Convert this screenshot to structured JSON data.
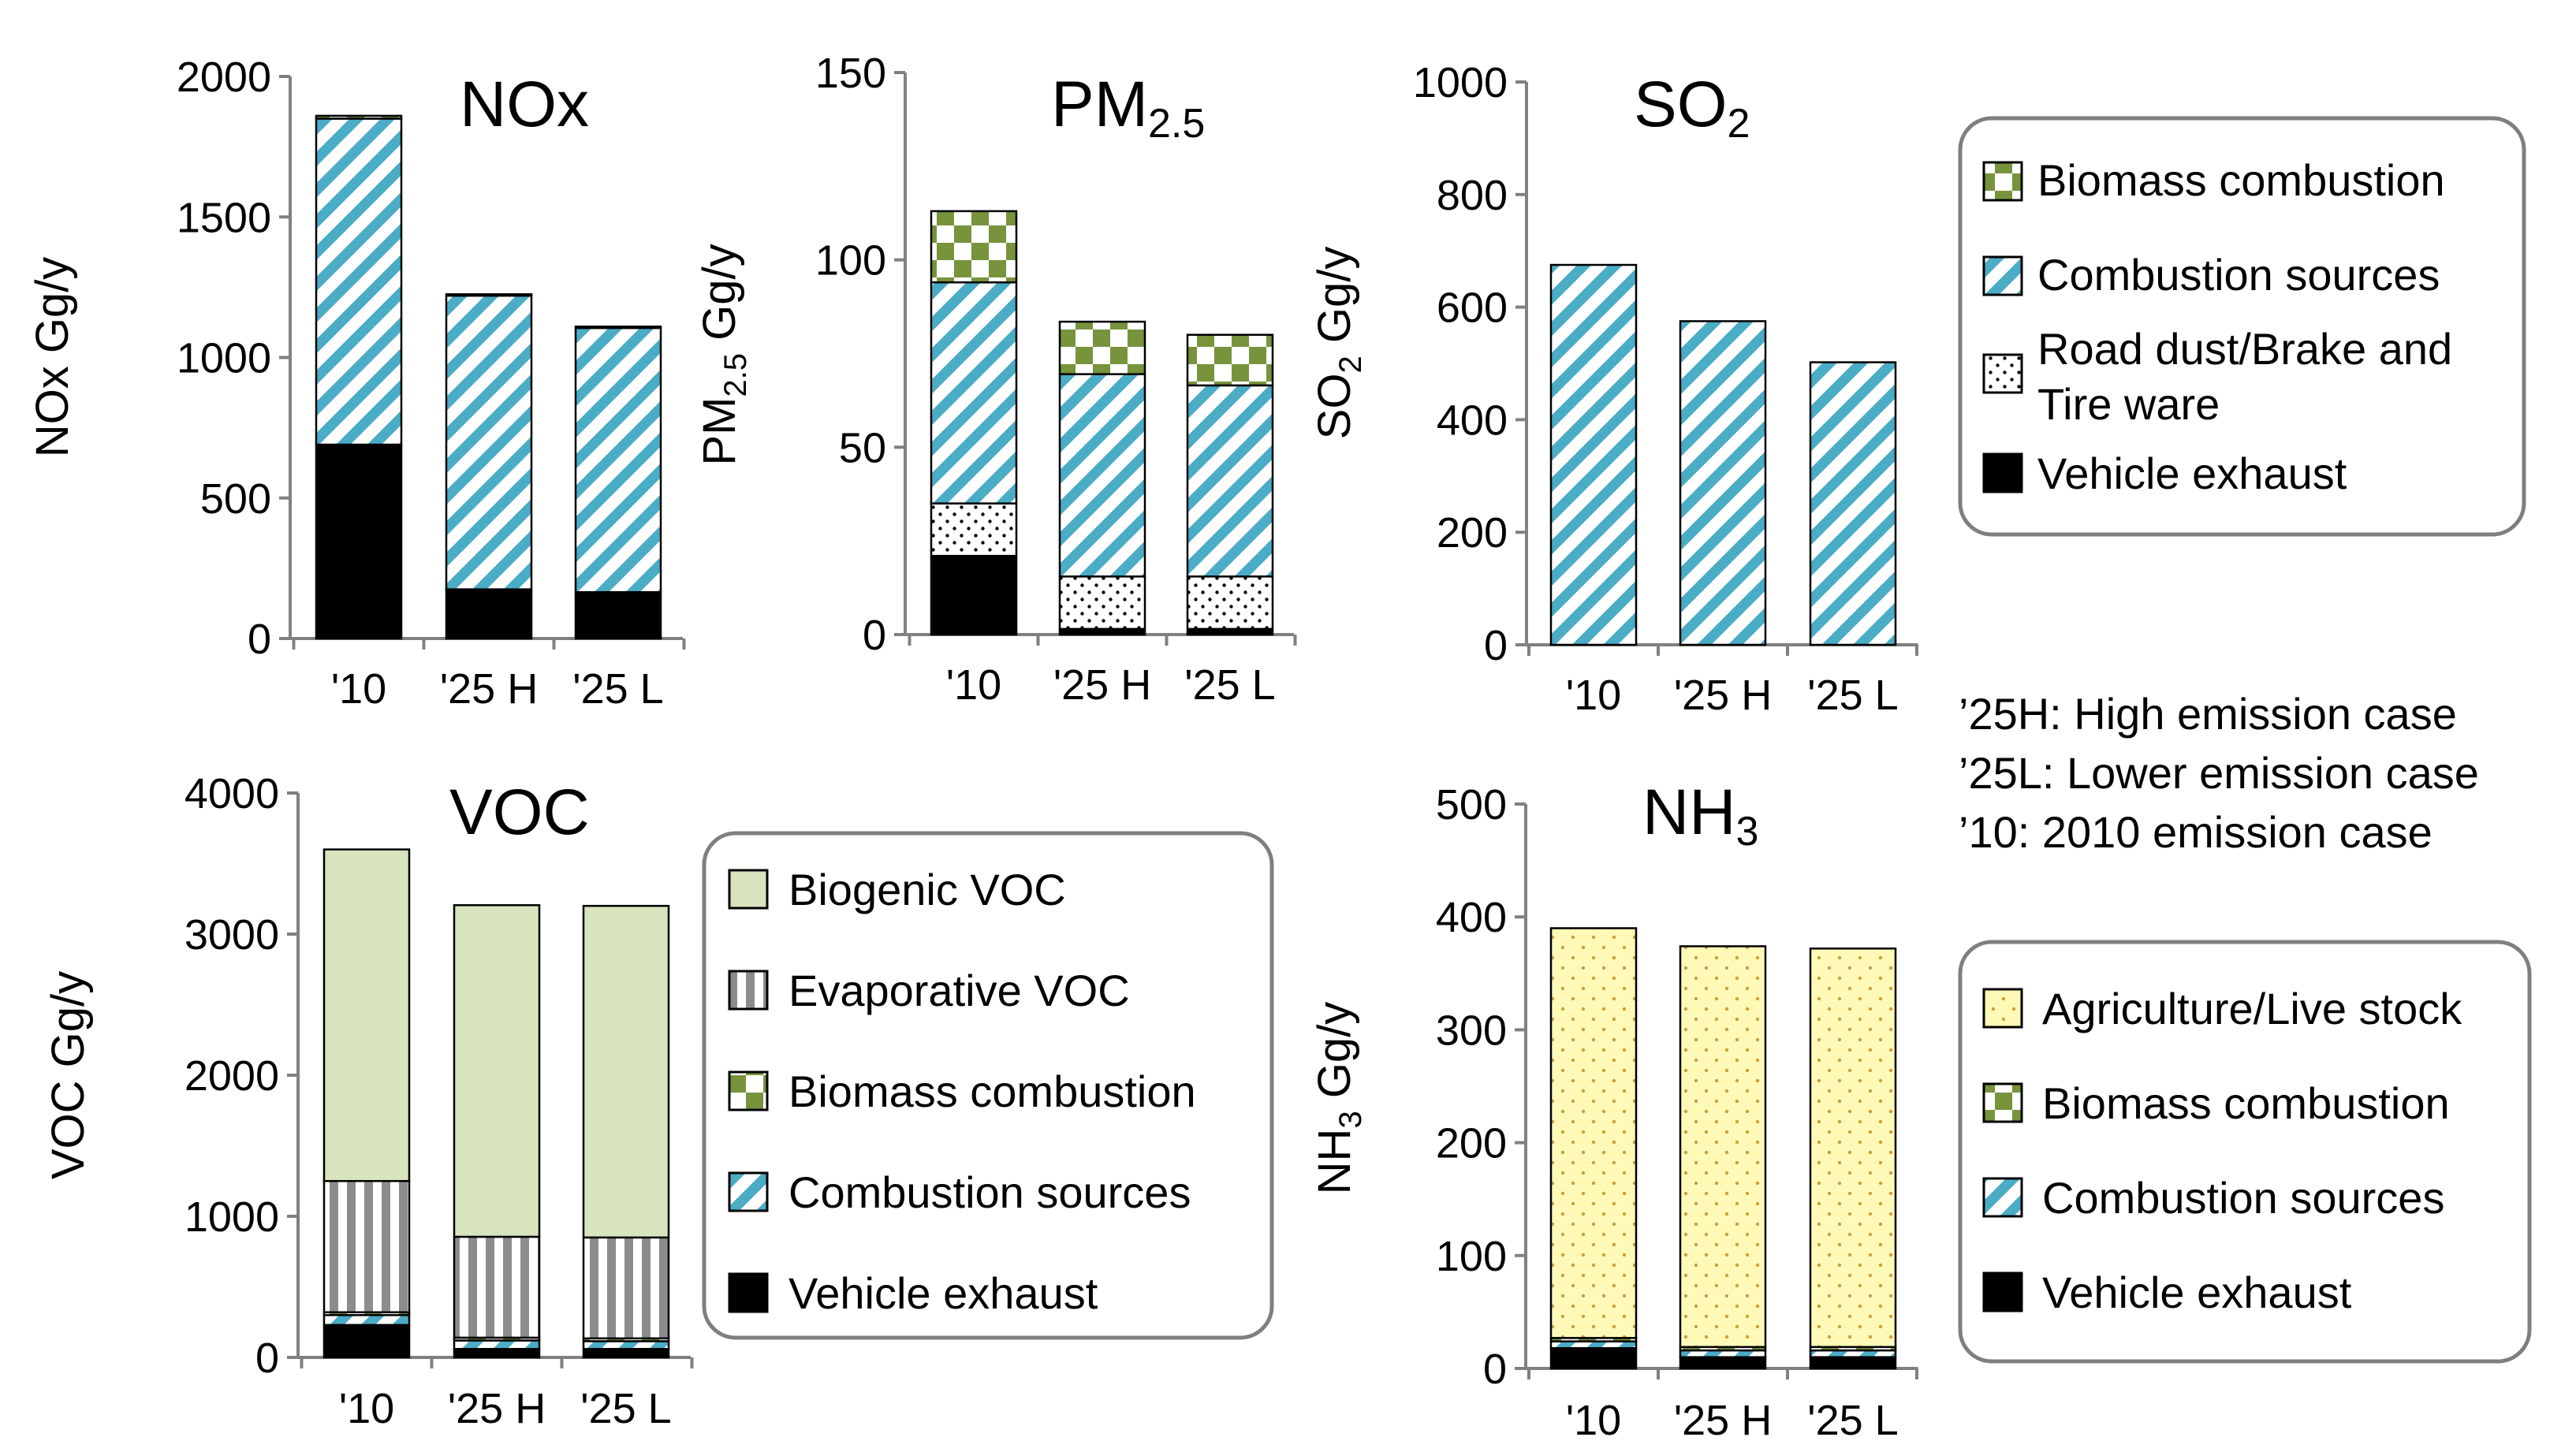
{
  "colors": {
    "vehicle_exhaust": "#000000",
    "combustion_sources": "#4bacc6",
    "biomass_green": "#77933c",
    "biogenic_voc": "#d7e4bd",
    "evaporative_gray": "#8c8c8c",
    "agriculture_yellow": "#fff9b8",
    "agriculture_dot": "#c9a03c",
    "frame": "#7f7f7f"
  },
  "legends": {
    "top": [
      "Biomass combustion",
      "Combustion sources",
      "Road dust/Brake and",
      "Tire ware",
      "Vehicle exhaust"
    ],
    "voc": [
      "Biogenic VOC",
      "Evaporative VOC",
      "Biomass combustion",
      "Combustion sources",
      "Vehicle exhaust"
    ],
    "nh3": [
      "Agriculture/Live stock",
      "Biomass combustion",
      "Combustion sources",
      "Vehicle exhaust"
    ]
  },
  "notes": [
    "’25H: High emission case",
    "’25L: Lower emission case",
    "’10: 2010 emission case"
  ],
  "chart_data": [
    {
      "id": "nox",
      "type": "bar",
      "stacked": true,
      "title": "NOx",
      "title_sub": "",
      "ylabel": "NOx Gg/y",
      "ylabel_sub": "",
      "ylabel_suffix": "",
      "categories": [
        "'10",
        "'25 H",
        "'25 L"
      ],
      "ylim": [
        0,
        2000
      ],
      "yticks": [
        "0",
        "500",
        "1000",
        "1500",
        "2000"
      ],
      "series": [
        {
          "key": "vehicle",
          "values": [
            690,
            175,
            165
          ]
        },
        {
          "key": "combustion",
          "values": [
            1160,
            1045,
            940
          ]
        },
        {
          "key": "biomass",
          "values": [
            10,
            5,
            5
          ]
        }
      ]
    },
    {
      "id": "pm25",
      "type": "bar",
      "stacked": true,
      "title": "PM",
      "title_sub": "2.5",
      "ylabel": "PM",
      "ylabel_sub": "2.5",
      "ylabel_suffix": " Gg/y",
      "categories": [
        "'10",
        "'25 H",
        "'25 L"
      ],
      "ylim": [
        0,
        150
      ],
      "yticks": [
        "0",
        "50",
        "100",
        "150"
      ],
      "series": [
        {
          "key": "vehicle",
          "values": [
            21,
            1.5,
            1.5
          ]
        },
        {
          "key": "road",
          "values": [
            14,
            14,
            14
          ]
        },
        {
          "key": "combustion",
          "values": [
            59,
            54,
            51
          ]
        },
        {
          "key": "biomass",
          "values": [
            19,
            14,
            13.5
          ]
        }
      ]
    },
    {
      "id": "so2",
      "type": "bar",
      "stacked": true,
      "title": "SO",
      "title_sub": "2",
      "ylabel": "SO",
      "ylabel_sub": "2",
      "ylabel_suffix": " Gg/y",
      "categories": [
        "'10",
        "'25 H",
        "'25 L"
      ],
      "ylim": [
        0,
        1000
      ],
      "yticks": [
        "0",
        "200",
        "400",
        "600",
        "800",
        "1000"
      ],
      "series": [
        {
          "key": "combustion",
          "values": [
            675,
            575,
            502
          ]
        }
      ]
    },
    {
      "id": "voc",
      "type": "bar",
      "stacked": true,
      "title": "VOC",
      "title_sub": "",
      "ylabel": "VOC Gg/y",
      "ylabel_sub": "",
      "ylabel_suffix": "",
      "categories": [
        "'10",
        "'25 H",
        "'25 L"
      ],
      "ylim": [
        0,
        4000
      ],
      "yticks": [
        "0",
        "1000",
        "2000",
        "3000",
        "4000"
      ],
      "series": [
        {
          "key": "vehicle",
          "values": [
            230,
            60,
            60
          ]
        },
        {
          "key": "combustion",
          "values": [
            70,
            60,
            55
          ]
        },
        {
          "key": "biomass",
          "values": [
            20,
            20,
            20
          ]
        },
        {
          "key": "evaporative",
          "values": [
            930,
            715,
            715
          ]
        },
        {
          "key": "biogenic",
          "values": [
            2350,
            2350,
            2350
          ]
        }
      ]
    },
    {
      "id": "nh3",
      "type": "bar",
      "stacked": true,
      "title": "NH",
      "title_sub": "3",
      "ylabel": "NH",
      "ylabel_sub": "3",
      "ylabel_suffix": " Gg/y",
      "categories": [
        "'10",
        "'25 H",
        "'25 L"
      ],
      "ylim": [
        0,
        500
      ],
      "yticks": [
        "0",
        "100",
        "200",
        "300",
        "400",
        "500"
      ],
      "series": [
        {
          "key": "vehicle",
          "values": [
            18,
            10,
            10
          ]
        },
        {
          "key": "combustion",
          "values": [
            6,
            6,
            6
          ]
        },
        {
          "key": "biomass",
          "values": [
            3,
            3,
            3
          ]
        },
        {
          "key": "agriculture",
          "values": [
            363,
            355,
            353
          ]
        }
      ]
    }
  ]
}
